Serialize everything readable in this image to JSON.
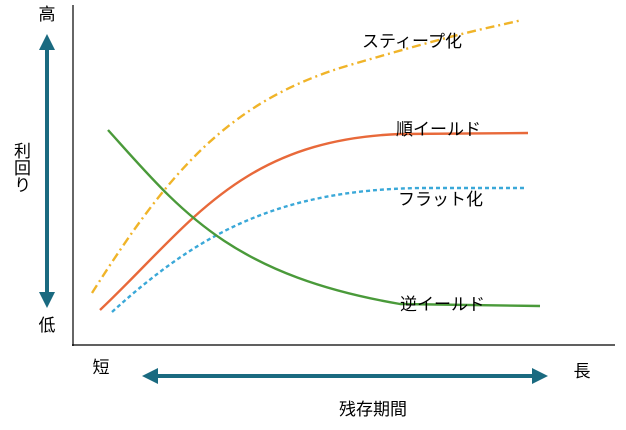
{
  "axis": {
    "y_high": "高",
    "y_low": "低",
    "y_label": "利回り",
    "x_short": "短",
    "x_long": "長",
    "x_label": "残存期間"
  },
  "curves": [
    {
      "label": "スティープ化"
    },
    {
      "label": "順イールド"
    },
    {
      "label": "フラット化"
    },
    {
      "label": "逆イールド"
    }
  ]
}
